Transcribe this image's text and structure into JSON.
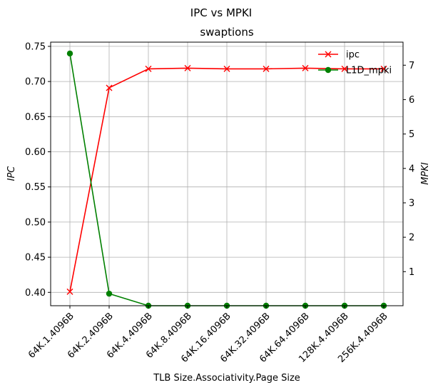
{
  "chart_data": {
    "type": "line",
    "title": "IPC vs MPKI",
    "subtitle": "swaptions",
    "xlabel": "TLB Size.Associativity.Page Size",
    "ylabel_left": "IPC",
    "ylabel_right": "MPKI",
    "categories": [
      "64K.1.4096B",
      "64K.2.4096B",
      "64K.4.4096B",
      "64K.8.4096B",
      "64K.16.4096B",
      "64K.32.4096B",
      "64K.64.4096B",
      "128K.4.4096B",
      "256K.4.4096B"
    ],
    "ylim_left": [
      0.381,
      0.756
    ],
    "ylim_right": [
      0.01,
      7.67
    ],
    "left_ticks": [
      0.4,
      0.45,
      0.5,
      0.55,
      0.6,
      0.65,
      0.7,
      0.75
    ],
    "left_tick_labels": [
      "0.40",
      "0.45",
      "0.50",
      "0.55",
      "0.60",
      "0.65",
      "0.70",
      "0.75"
    ],
    "right_ticks": [
      1,
      2,
      3,
      4,
      5,
      6,
      7
    ],
    "right_tick_labels": [
      "1",
      "2",
      "3",
      "4",
      "5",
      "6",
      "7"
    ],
    "grid": true,
    "legend_position": "top-right",
    "series": [
      {
        "name": "ipc",
        "axis": "left",
        "color": "#ff0000",
        "marker": "x",
        "values": [
          0.401,
          0.691,
          0.718,
          0.719,
          0.718,
          0.718,
          0.719,
          0.718,
          0.718
        ]
      },
      {
        "name": "L1D_mpki",
        "axis": "right",
        "color": "#008000",
        "marker": "o",
        "values": [
          7.34,
          0.36,
          0.01,
          0.01,
          0.01,
          0.01,
          0.01,
          0.01,
          0.01
        ]
      }
    ]
  }
}
